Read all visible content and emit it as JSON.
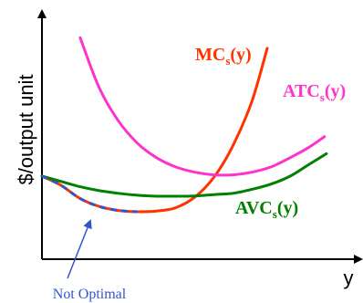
{
  "chart_data": {
    "type": "line",
    "xlabel": "y",
    "ylabel": "$/output unit",
    "ticks": false,
    "grid": false,
    "colors": {
      "mc": "#ff3300",
      "atc": "#ff33cc",
      "avc": "#008000",
      "not_optimal": "#3355cc",
      "axis": "#000000"
    },
    "series": [
      {
        "key": "mc",
        "label_main": "MC",
        "label_sub": "s",
        "label_tail": "(y)",
        "points": [
          [
            0,
            0.63
          ],
          [
            1,
            0.56
          ],
          [
            2,
            0.46
          ],
          [
            3,
            0.4
          ],
          [
            4,
            0.37
          ],
          [
            5,
            0.36
          ],
          [
            6,
            0.365
          ],
          [
            7,
            0.39
          ],
          [
            8,
            0.47
          ],
          [
            9,
            0.62
          ],
          [
            10,
            0.86
          ],
          [
            11,
            1.2
          ],
          [
            11.8,
            1.6
          ]
        ]
      },
      {
        "key": "atc",
        "label_main": "ATC",
        "label_sub": "s",
        "label_tail": "(y)",
        "points": [
          [
            2,
            1.68
          ],
          [
            3,
            1.3
          ],
          [
            4,
            1.05
          ],
          [
            5,
            0.88
          ],
          [
            6,
            0.77
          ],
          [
            7,
            0.7
          ],
          [
            8,
            0.66
          ],
          [
            9,
            0.64
          ],
          [
            10,
            0.64
          ],
          [
            11,
            0.66
          ],
          [
            12,
            0.7
          ],
          [
            13,
            0.77
          ],
          [
            14,
            0.85
          ],
          [
            14.8,
            0.93
          ]
        ]
      },
      {
        "key": "avc",
        "label_main": "AVC",
        "label_sub": "s",
        "label_tail": "(y)",
        "points": [
          [
            0,
            0.63
          ],
          [
            1,
            0.59
          ],
          [
            2,
            0.55
          ],
          [
            3,
            0.52
          ],
          [
            4,
            0.5
          ],
          [
            5,
            0.485
          ],
          [
            6,
            0.478
          ],
          [
            7,
            0.478
          ],
          [
            8,
            0.48
          ],
          [
            9,
            0.49
          ],
          [
            10,
            0.5
          ],
          [
            11,
            0.53
          ],
          [
            12,
            0.57
          ],
          [
            13,
            0.63
          ],
          [
            14,
            0.72
          ],
          [
            14.9,
            0.8
          ]
        ]
      }
    ],
    "not_optimal_segment": {
      "x_from": 0,
      "x_to": 5.7,
      "style": "dashed"
    },
    "annotation": {
      "text": "Not Optimal"
    }
  }
}
